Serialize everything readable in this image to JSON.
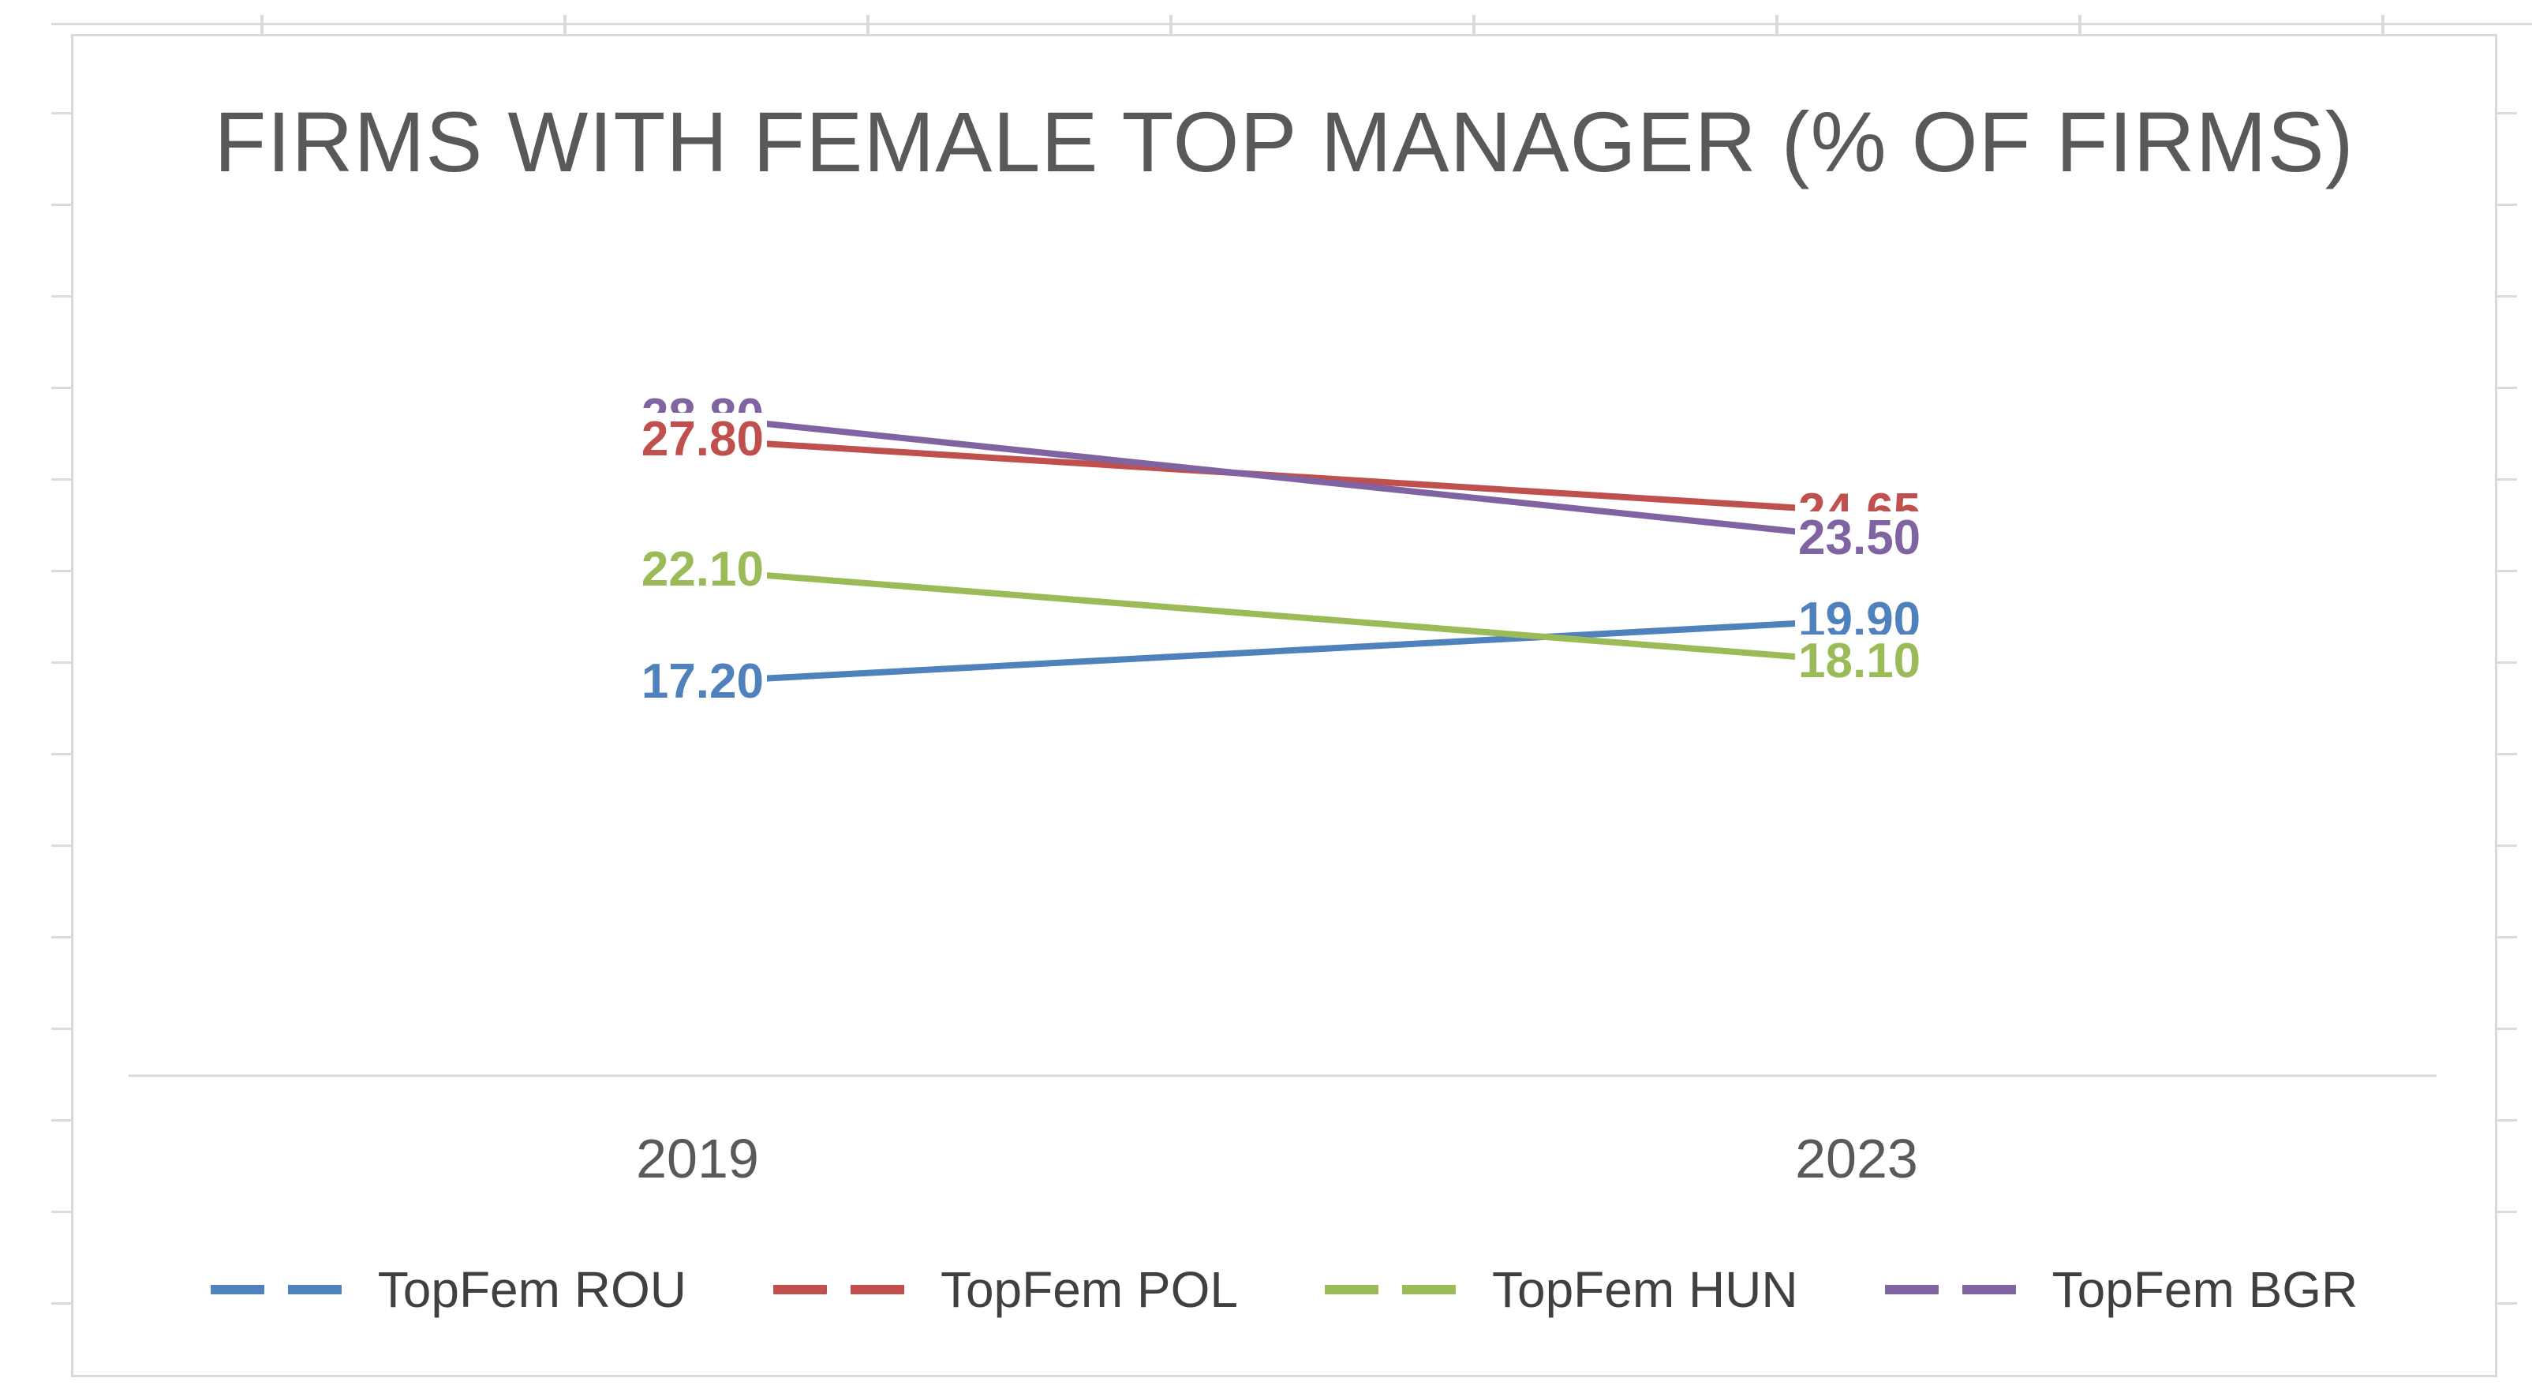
{
  "chart_data": {
    "type": "line",
    "title": "FIRMS WITH FEMALE TOP MANAGER (% OF FIRMS)",
    "categories": [
      "2019",
      "2023"
    ],
    "series": [
      {
        "name": "TopFem ROU",
        "color": "#4F81BD",
        "values": [
          17.2,
          19.9
        ],
        "data_labels": [
          "17.20",
          "19.90"
        ]
      },
      {
        "name": "TopFem POL",
        "color": "#C0504D",
        "values": [
          27.8,
          24.65
        ],
        "data_labels": [
          "27.80",
          "24.65"
        ]
      },
      {
        "name": "TopFem HUN",
        "color": "#9BBB59",
        "values": [
          22.1,
          18.1
        ],
        "data_labels": [
          "22.10",
          "18.10"
        ]
      },
      {
        "name": "TopFem BGR",
        "color": "#8064A2",
        "values": [
          28.8,
          23.5
        ],
        "data_labels": [
          "28.80",
          "23.50"
        ]
      }
    ],
    "xlabel": "",
    "ylabel": "",
    "ylim": [
      0,
      40
    ],
    "grid": false,
    "y_axis_tick_labels_visible": false,
    "legend_position": "bottom",
    "data_labels_shown": true,
    "axis_line_color": "#D9D9D9",
    "text_colors": {
      "title": "#595959",
      "axis": "#595959",
      "legend": "#404040"
    }
  }
}
